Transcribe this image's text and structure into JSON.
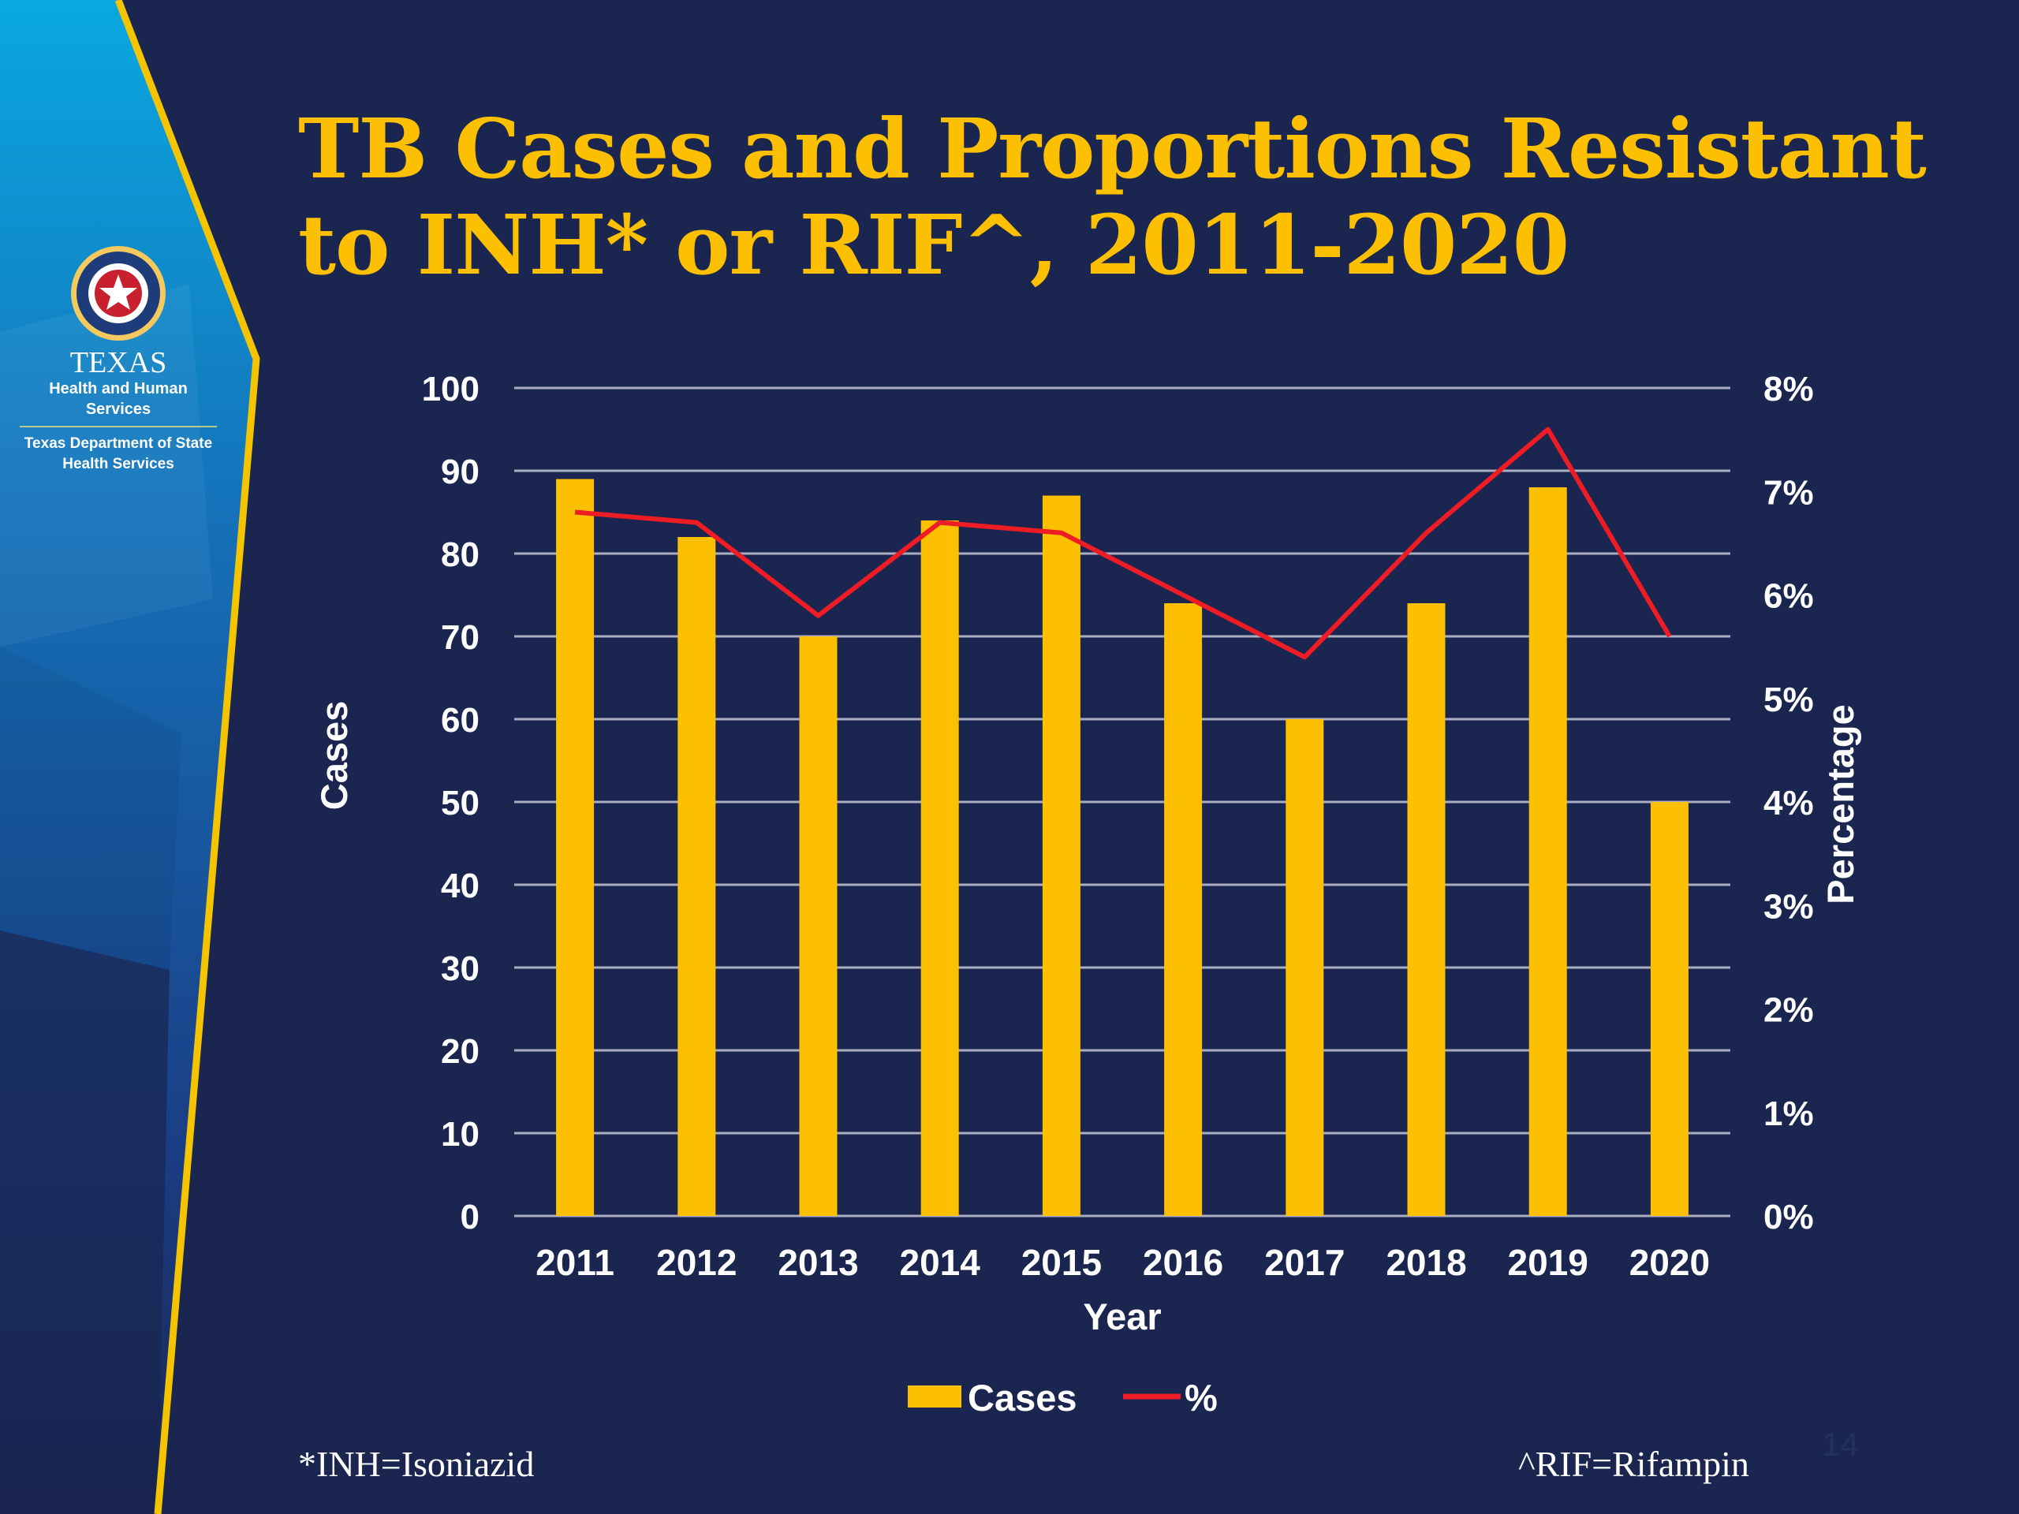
{
  "slide": {
    "title": "TB Cases and Proportions Resistant to INH* or RIF^, 2011-2020",
    "footnote_left": "*INH=Isoniazid",
    "footnote_right": "^RIF=Rifampin",
    "slide_number": "14"
  },
  "logo": {
    "agency": "TEXAS",
    "line1": "Health and Human Services",
    "line2a": "Texas Department of State",
    "line2b": "Health Services"
  },
  "colors": {
    "background": "#1a2550",
    "title": "#fcc000",
    "bars": "#fcc000",
    "line": "#ee1c25",
    "gridlines": "#a9adbf",
    "side_gradient_top": "#0c9ed8",
    "side_gradient_bottom": "#173a80",
    "side_border": "#f5c400"
  },
  "chart_data": {
    "type": "bar+line",
    "categories": [
      "2011",
      "2012",
      "2013",
      "2014",
      "2015",
      "2016",
      "2017",
      "2018",
      "2019",
      "2020"
    ],
    "series": [
      {
        "name": "Cases",
        "type": "bar",
        "axis": "left",
        "values": [
          89,
          82,
          70,
          84,
          87,
          74,
          60,
          74,
          88,
          50
        ]
      },
      {
        "name": "%",
        "type": "line",
        "axis": "right",
        "values": [
          6.8,
          6.7,
          5.8,
          6.7,
          6.6,
          6.0,
          5.4,
          6.6,
          7.6,
          5.6
        ]
      }
    ],
    "xlabel": "Year",
    "ylabel": "Cases",
    "y2label": "Percentage",
    "ylim": [
      0,
      100
    ],
    "y2lim": [
      0,
      8
    ],
    "yticks": [
      "0",
      "10",
      "20",
      "30",
      "40",
      "50",
      "60",
      "70",
      "80",
      "90",
      "100"
    ],
    "y2ticks": [
      "0%",
      "1%",
      "2%",
      "3%",
      "4%",
      "5%",
      "6%",
      "7%",
      "8%"
    ],
    "grid": true,
    "legend": "bottom"
  }
}
